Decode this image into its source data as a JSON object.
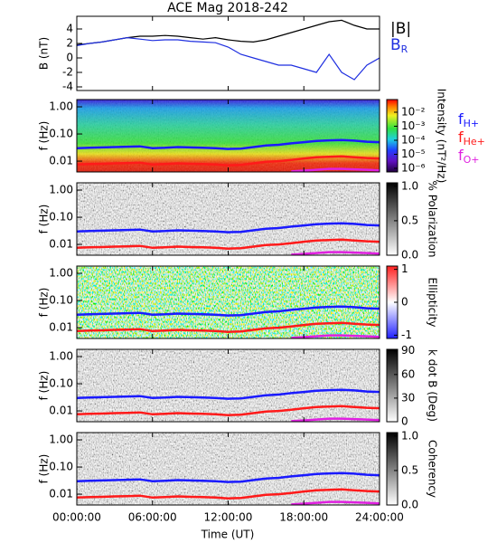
{
  "chart_data": {
    "type": "multi-panel",
    "title": "ACE Mag 2018-242",
    "xlabel": "Time (UT)",
    "xlim": [
      0,
      24
    ],
    "xticks": [
      {
        "value": 0,
        "label": "00:00:00"
      },
      {
        "value": 6,
        "label": "06:00:00"
      },
      {
        "value": 12,
        "label": "12:00:00"
      },
      {
        "value": 18,
        "label": "18:00:00"
      },
      {
        "value": 24,
        "label": "24:00:00"
      }
    ],
    "x": [
      0,
      1,
      2,
      3,
      4,
      5,
      6,
      7,
      8,
      9,
      10,
      11,
      12,
      13,
      14,
      15,
      16,
      17,
      18,
      19,
      20,
      21,
      22,
      23,
      24
    ],
    "field": {
      "type": "line",
      "ylabel": "B (nT)",
      "ylim": [
        -4.5,
        5.75
      ],
      "yticks": [
        -4,
        -2,
        0,
        2,
        4
      ],
      "series": [
        {
          "name": "|B|",
          "color": "#000000",
          "values": [
            1.8,
            2,
            2.2,
            2.5,
            2.8,
            3,
            3,
            3.1,
            3,
            2.8,
            2.6,
            2.8,
            2.5,
            2.3,
            2.2,
            2.5,
            3,
            3.5,
            4,
            4.5,
            5,
            5.2,
            4.5,
            4,
            4
          ]
        },
        {
          "name": "BR",
          "color": "#1f2fe0",
          "values": [
            1.7,
            2,
            2.2,
            2.5,
            2.8,
            2.6,
            2.4,
            2.5,
            2.5,
            2.3,
            2.2,
            2.1,
            1.5,
            0.5,
            0,
            -0.5,
            -1,
            -1,
            -1.5,
            -2,
            0.5,
            -2,
            -3,
            -1,
            0
          ]
        }
      ]
    },
    "gyro": [
      {
        "name": "fH+",
        "color": "#1a1aff",
        "values": [
          0.03,
          0.031,
          0.032,
          0.033,
          0.034,
          0.035,
          0.03,
          0.031,
          0.033,
          0.032,
          0.031,
          0.03,
          0.028,
          0.029,
          0.033,
          0.038,
          0.04,
          0.045,
          0.05,
          0.055,
          0.058,
          0.06,
          0.057,
          0.052,
          0.05
        ]
      },
      {
        "name": "fHe+",
        "color": "#ff1a1a",
        "values": [
          0.0075,
          0.0078,
          0.008,
          0.0083,
          0.0085,
          0.0088,
          0.0075,
          0.0078,
          0.0083,
          0.008,
          0.0078,
          0.0075,
          0.007,
          0.0073,
          0.0083,
          0.0095,
          0.01,
          0.011,
          0.0125,
          0.014,
          0.0145,
          0.015,
          0.014,
          0.013,
          0.0125
        ]
      },
      {
        "name": "fO+",
        "color": "#e020e0",
        "values": [
          null,
          null,
          null,
          null,
          null,
          null,
          null,
          null,
          null,
          null,
          null,
          null,
          null,
          null,
          null,
          null,
          null,
          0.0042,
          0.0045,
          0.0048,
          0.0052,
          0.0052,
          0.005,
          0.0048,
          0.0046
        ]
      }
    ],
    "spectra": [
      {
        "type": "spectrogram",
        "ylabel": "f (Hz)",
        "log": true,
        "ylim": [
          0.004,
          1.85
        ],
        "yticks": [
          {
            "value": 0.01,
            "label": "0.01"
          },
          {
            "value": 0.1,
            "label": "0.10"
          },
          {
            "value": 1,
            "label": "1.00"
          }
        ],
        "colorbar": {
          "label": "Intensity (nT²/Hz)",
          "log": true,
          "clim": [
            5.5e-07,
            0.08
          ],
          "ticks": [
            {
              "value": 0.01,
              "label": "10⁻²"
            },
            {
              "value": 0.001,
              "label": "10⁻³"
            },
            {
              "value": 0.0001,
              "label": "10⁻⁴"
            },
            {
              "value": 1e-05,
              "label": "10⁻⁵"
            },
            {
              "value": 1e-06,
              "label": "10⁻⁶"
            }
          ]
        }
      },
      {
        "type": "spectrogram",
        "ylabel": "f (Hz)",
        "log": true,
        "ylim": [
          0.004,
          1.85
        ],
        "yticks": [
          {
            "value": 0.01,
            "label": "0.01"
          },
          {
            "value": 0.1,
            "label": "0.10"
          },
          {
            "value": 1,
            "label": "1.00"
          }
        ],
        "colorbar": {
          "label": "% Polarization",
          "clim": [
            0,
            1.05
          ],
          "ticks": [
            {
              "value": 0,
              "label": "0.0"
            },
            0.5,
            {
              "value": 1,
              "label": "1.0"
            }
          ]
        }
      },
      {
        "type": "spectrogram",
        "ylabel": "f (Hz)",
        "log": true,
        "ylim": [
          0.004,
          1.85
        ],
        "yticks": [
          {
            "value": 0.01,
            "label": "0.01"
          },
          {
            "value": 0.1,
            "label": "0.10"
          },
          {
            "value": 1,
            "label": "1.00"
          }
        ],
        "colorbar": {
          "label": "Ellipticity",
          "clim": [
            -1.1,
            1.1
          ],
          "ticks": [
            -1,
            0,
            1
          ]
        }
      },
      {
        "type": "spectrogram",
        "ylabel": "f (Hz)",
        "log": true,
        "ylim": [
          0.004,
          1.85
        ],
        "yticks": [
          {
            "value": 0.01,
            "label": "0.01"
          },
          {
            "value": 0.1,
            "label": "0.10"
          },
          {
            "value": 1,
            "label": "1.00"
          }
        ],
        "colorbar": {
          "label": "k dot B (Deg)",
          "clim": [
            0,
            92
          ],
          "ticks": [
            0,
            30,
            60,
            90
          ]
        }
      },
      {
        "type": "spectrogram",
        "ylabel": "f (Hz)",
        "log": true,
        "ylim": [
          0.004,
          1.85
        ],
        "yticks": [
          {
            "value": 0.01,
            "label": "0.01"
          },
          {
            "value": 0.1,
            "label": "0.10"
          },
          {
            "value": 1,
            "label": "1.00"
          }
        ],
        "colorbar": {
          "label": "Coherency",
          "clim": [
            0,
            1.05
          ],
          "ticks": [
            {
              "value": 0,
              "label": "0.0"
            },
            0.5,
            {
              "value": 1,
              "label": "1.0"
            }
          ]
        }
      }
    ]
  }
}
